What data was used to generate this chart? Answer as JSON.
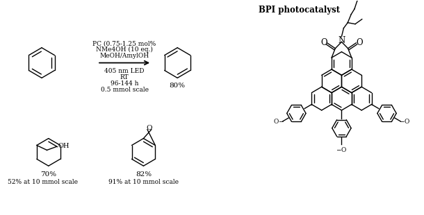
{
  "bg_color": "#ffffff",
  "text_color": "#000000",
  "reaction_conditions": [
    "PC (0.75-1.25 mol%",
    "NMe4OH (10 eq.)",
    "MeOH/AmylOH"
  ],
  "reaction_conditions2": [
    "405 nm LED",
    "RT",
    "96-144 h",
    "0.5 mmol scale"
  ],
  "yield_main": "80%",
  "yield_2a": "70%",
  "yield_2a_scale": "52% at 10 mmol scale",
  "yield_2b": "82%",
  "yield_2b_scale": "91% at 10 mmol scale",
  "bpi_label": "BPI photocatalyst",
  "fs": 6.5,
  "fs_yield": 7.5,
  "fs_bpi": 8.5
}
